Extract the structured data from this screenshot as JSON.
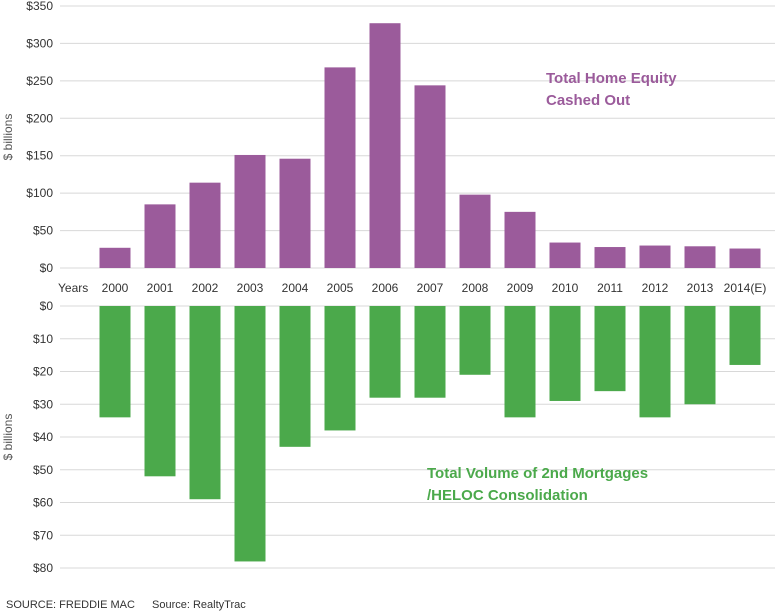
{
  "chart_data": [
    {
      "type": "bar",
      "categories": [
        "2000",
        "2001",
        "2002",
        "2003",
        "2004",
        "2005",
        "2006",
        "2007",
        "2008",
        "2009",
        "2010",
        "2011",
        "2012",
        "2013",
        "2014(E)"
      ],
      "series": [
        {
          "name": "Total Home Equity Cashed Out",
          "values": [
            27,
            85,
            114,
            151,
            146,
            268,
            327,
            244,
            98,
            75,
            34,
            28,
            30,
            29,
            26
          ]
        }
      ],
      "ylabel": "$ billions",
      "ylim": [
        0,
        350
      ],
      "yticks": [
        "$0",
        "$50",
        "$100",
        "$150",
        "$200",
        "$250",
        "$300",
        "$350"
      ],
      "annotation": [
        "Total Home Equity",
        "Cashed Out"
      ],
      "color": "#9b5b9b",
      "grid": true
    },
    {
      "type": "bar",
      "categories": [
        "2000",
        "2001",
        "2002",
        "2003",
        "2004",
        "2005",
        "2006",
        "2007",
        "2008",
        "2009",
        "2010",
        "2011",
        "2012",
        "2013",
        "2014(E)"
      ],
      "series": [
        {
          "name": "Total Volume of 2nd Mortgages /HELOC Consolidation",
          "values": [
            34,
            52,
            59,
            78,
            43,
            38,
            28,
            28,
            21,
            34,
            29,
            26,
            34,
            30,
            18
          ]
        }
      ],
      "ylabel": "$ billions",
      "ylim": [
        0,
        80
      ],
      "yticks": [
        "$0",
        "$10",
        "$20",
        "$30",
        "$40",
        "$50",
        "$60",
        "$70",
        "$80"
      ],
      "inverted": true,
      "annotation": [
        "Total Volume of 2nd Mortgages",
        "/HELOC Consolidation"
      ],
      "color": "#4ba94b",
      "grid": true
    }
  ],
  "x_axis_prefix": "Years",
  "sources": [
    "SOURCE: FREDDIE MAC",
    "Source: RealtyTrac"
  ]
}
